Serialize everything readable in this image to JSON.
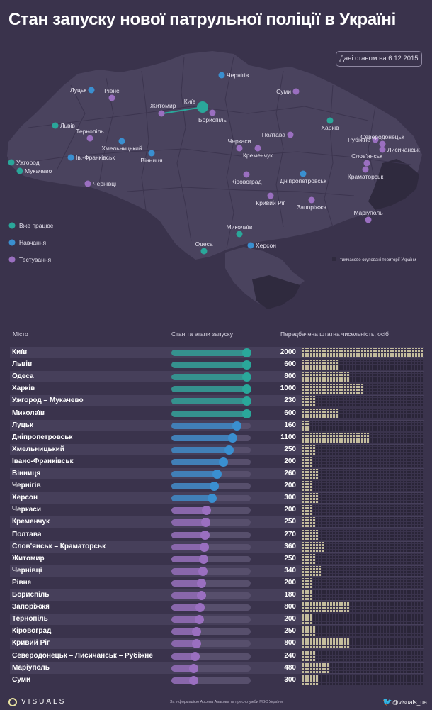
{
  "title": "Стан запуску нової патрульної поліції в Україні",
  "date_note": "Дані станом на 6.12.2015",
  "legend": [
    {
      "label": "Вже працює",
      "color": "#2aa79a"
    },
    {
      "label": "Навчання",
      "color": "#3a8fd0"
    },
    {
      "label": "Тестування",
      "color": "#9a6fc0"
    }
  ],
  "occupied_note": "тимчасово окуповані території України",
  "map": {
    "cities": [
      {
        "name": "Чернігів",
        "status": "Навчання"
      },
      {
        "name": "Суми",
        "status": "Тестування"
      },
      {
        "name": "Луцьк",
        "status": "Навчання"
      },
      {
        "name": "Рівне",
        "status": "Тестування"
      },
      {
        "name": "Житомир",
        "status": "Тестування"
      },
      {
        "name": "Київ",
        "status": "Вже працює"
      },
      {
        "name": "Бориспіль",
        "status": "Тестування"
      },
      {
        "name": "Харків",
        "status": "Вже працює"
      },
      {
        "name": "Львів",
        "status": "Вже працює"
      },
      {
        "name": "Тернопіль",
        "status": "Тестування"
      },
      {
        "name": "Хмельницький",
        "status": "Навчання"
      },
      {
        "name": "Полтава",
        "status": "Тестування"
      },
      {
        "name": "Рубіжне",
        "status": "Тестування"
      },
      {
        "name": "Северодонецьк",
        "status": "Тестування"
      },
      {
        "name": "Лисичанськ",
        "status": "Тестування"
      },
      {
        "name": "Черкаси",
        "status": "Тестування"
      },
      {
        "name": "Кременчук",
        "status": "Тестування"
      },
      {
        "name": "Слов'янськ",
        "status": "Тестування"
      },
      {
        "name": "Ужгород",
        "status": "Вже працює"
      },
      {
        "name": "Мукачево",
        "status": "Вже працює"
      },
      {
        "name": "Ів.-Франківськ",
        "status": "Навчання"
      },
      {
        "name": "Вінниця",
        "status": "Навчання"
      },
      {
        "name": "Краматорськ",
        "status": "Тестування"
      },
      {
        "name": "Кіровоград",
        "status": "Тестування"
      },
      {
        "name": "Дніпропетровськ",
        "status": "Навчання"
      },
      {
        "name": "Чернівці",
        "status": "Тестування"
      },
      {
        "name": "Кривий Ріг",
        "status": "Тестування"
      },
      {
        "name": "Запоріжжя",
        "status": "Тестування"
      },
      {
        "name": "Маріуполь",
        "status": "Тестування"
      },
      {
        "name": "Миколаїв",
        "status": "Вже працює"
      },
      {
        "name": "Одеса",
        "status": "Вже працює"
      },
      {
        "name": "Херсон",
        "status": "Навчання"
      }
    ]
  },
  "table": {
    "col_city": "Місто",
    "col_stage": "Стан та етапи запуску",
    "col_staff": "Передбачена штатна чисельність, осіб"
  },
  "chart_data": {
    "type": "table",
    "columns": [
      "Місто",
      "Стан та етапи запуску",
      "Передбачена штатна чисельність, осіб"
    ],
    "stage_scale": [
      0,
      1
    ],
    "staff_max": 2000,
    "rows": [
      {
        "city": "Київ",
        "stage": "Вже працює",
        "progress": 1.0,
        "staff": 2000
      },
      {
        "city": "Львів",
        "stage": "Вже працює",
        "progress": 1.0,
        "staff": 600
      },
      {
        "city": "Одеса",
        "stage": "Вже працює",
        "progress": 1.0,
        "staff": 800
      },
      {
        "city": "Харків",
        "stage": "Вже працює",
        "progress": 1.0,
        "staff": 1000
      },
      {
        "city": "Ужгород – Мукачево",
        "stage": "Вже працює",
        "progress": 1.0,
        "staff": 230
      },
      {
        "city": "Миколаїв",
        "stage": "Вже працює",
        "progress": 1.0,
        "staff": 600
      },
      {
        "city": "Луцьк",
        "stage": "Навчання",
        "progress": 0.86,
        "staff": 160
      },
      {
        "city": "Дніпропетровськ",
        "stage": "Навчання",
        "progress": 0.8,
        "staff": 1100
      },
      {
        "city": "Хмельницький",
        "stage": "Навчання",
        "progress": 0.75,
        "staff": 250
      },
      {
        "city": "Івано-Франківськ",
        "stage": "Навчання",
        "progress": 0.67,
        "staff": 200
      },
      {
        "city": "Вінниця",
        "stage": "Навчання",
        "progress": 0.58,
        "staff": 260
      },
      {
        "city": "Чернігів",
        "stage": "Навчання",
        "progress": 0.54,
        "staff": 200
      },
      {
        "city": "Херсон",
        "stage": "Навчання",
        "progress": 0.51,
        "staff": 300
      },
      {
        "city": "Черкаси",
        "stage": "Тестування",
        "progress": 0.43,
        "staff": 200
      },
      {
        "city": "Кременчук",
        "stage": "Тестування",
        "progress": 0.42,
        "staff": 250
      },
      {
        "city": "Полтава",
        "stage": "Тестування",
        "progress": 0.41,
        "staff": 270
      },
      {
        "city": "Слов'янськ – Краматорськ",
        "stage": "Тестування",
        "progress": 0.4,
        "staff": 360
      },
      {
        "city": "Житомир",
        "stage": "Тестування",
        "progress": 0.39,
        "staff": 250
      },
      {
        "city": "Чернівці",
        "stage": "Тестування",
        "progress": 0.38,
        "staff": 340
      },
      {
        "city": "Рівне",
        "stage": "Тестування",
        "progress": 0.36,
        "staff": 200
      },
      {
        "city": "Бориспіль",
        "stage": "Тестування",
        "progress": 0.36,
        "staff": 180
      },
      {
        "city": "Запоріжжя",
        "stage": "Тестування",
        "progress": 0.34,
        "staff": 800
      },
      {
        "city": "Тернопіль",
        "stage": "Тестування",
        "progress": 0.33,
        "staff": 200
      },
      {
        "city": "Кіровоград",
        "stage": "Тестування",
        "progress": 0.29,
        "staff": 250
      },
      {
        "city": "Кривий Ріг",
        "stage": "Тестування",
        "progress": 0.29,
        "staff": 800
      },
      {
        "city": "Северодонецьк – Лисичанськ – Рубіжне",
        "stage": "Тестування",
        "progress": 0.27,
        "staff": 240
      },
      {
        "city": "Маріуполь",
        "stage": "Тестування",
        "progress": 0.25,
        "staff": 480
      },
      {
        "city": "Суми",
        "stage": "Тестування",
        "progress": 0.25,
        "staff": 300
      }
    ]
  },
  "footer": {
    "logo": "VISUALS",
    "source": "За інформацією Арсена Авакова та прес-служби МВС України",
    "social_icon": "twitter-icon",
    "social": "@visuals_ua"
  }
}
